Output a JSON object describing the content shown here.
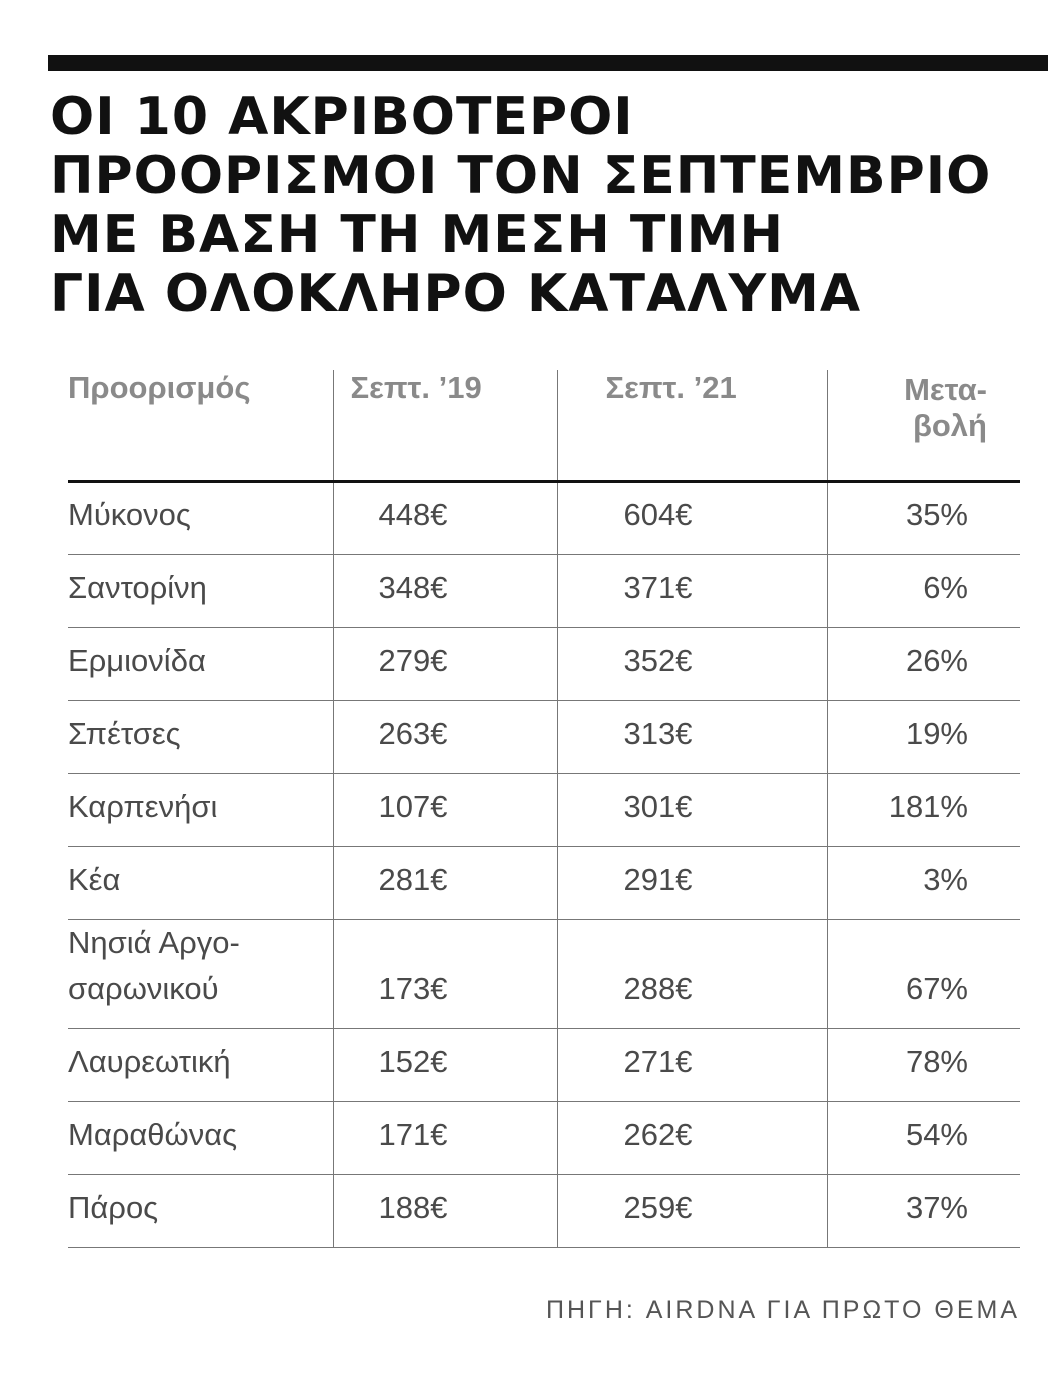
{
  "header": {
    "title": [
      "ΟΙ 10 ΑΚΡΙΒΟΤΕΡΟΙ",
      "ΠΡΟΟΡΙΣΜΟΙ ΤΟΝ ΣΕΠΤΕΜΒΡΙΟ",
      "ΜΕ ΒΑΣΗ ΤΗ ΜΕΣΗ ΤΙΜΗ",
      "ΓΙΑ ΟΛΟΚΛΗΡΟ ΚΑΤΑΛΥΜΑ"
    ]
  },
  "table": {
    "columns": [
      [
        "Προορισμός"
      ],
      [
        "Σεπτ. ’19"
      ],
      [
        "Σεπτ. ’21"
      ],
      [
        "Μετα-",
        "βολή"
      ]
    ],
    "rows": [
      [
        [
          "Μύκονος"
        ],
        "448€",
        "604€",
        "35%"
      ],
      [
        [
          "Σαντορίνη"
        ],
        "348€",
        "371€",
        "6%"
      ],
      [
        [
          "Ερμιονίδα"
        ],
        "279€",
        "352€",
        "26%"
      ],
      [
        [
          "Σπέτσες"
        ],
        "263€",
        "313€",
        "19%"
      ],
      [
        [
          "Καρπενήσι"
        ],
        "107€",
        "301€",
        "181%"
      ],
      [
        [
          "Κέα"
        ],
        "281€",
        "291€",
        "3%"
      ],
      [
        [
          "Νησιά Αργο-",
          "σαρωνικού"
        ],
        "173€",
        "288€",
        "67%"
      ],
      [
        [
          "Λαυρεωτική"
        ],
        "152€",
        "271€",
        "78%"
      ],
      [
        [
          "Μαραθώνας"
        ],
        "171€",
        "262€",
        "54%"
      ],
      [
        [
          "Πάρος"
        ],
        "188€",
        "259€",
        "37%"
      ]
    ]
  },
  "source": "ΠΗΓΗ: AIRDNA ΓΙΑ ΠΡΩΤΟ ΘΕΜΑ"
}
